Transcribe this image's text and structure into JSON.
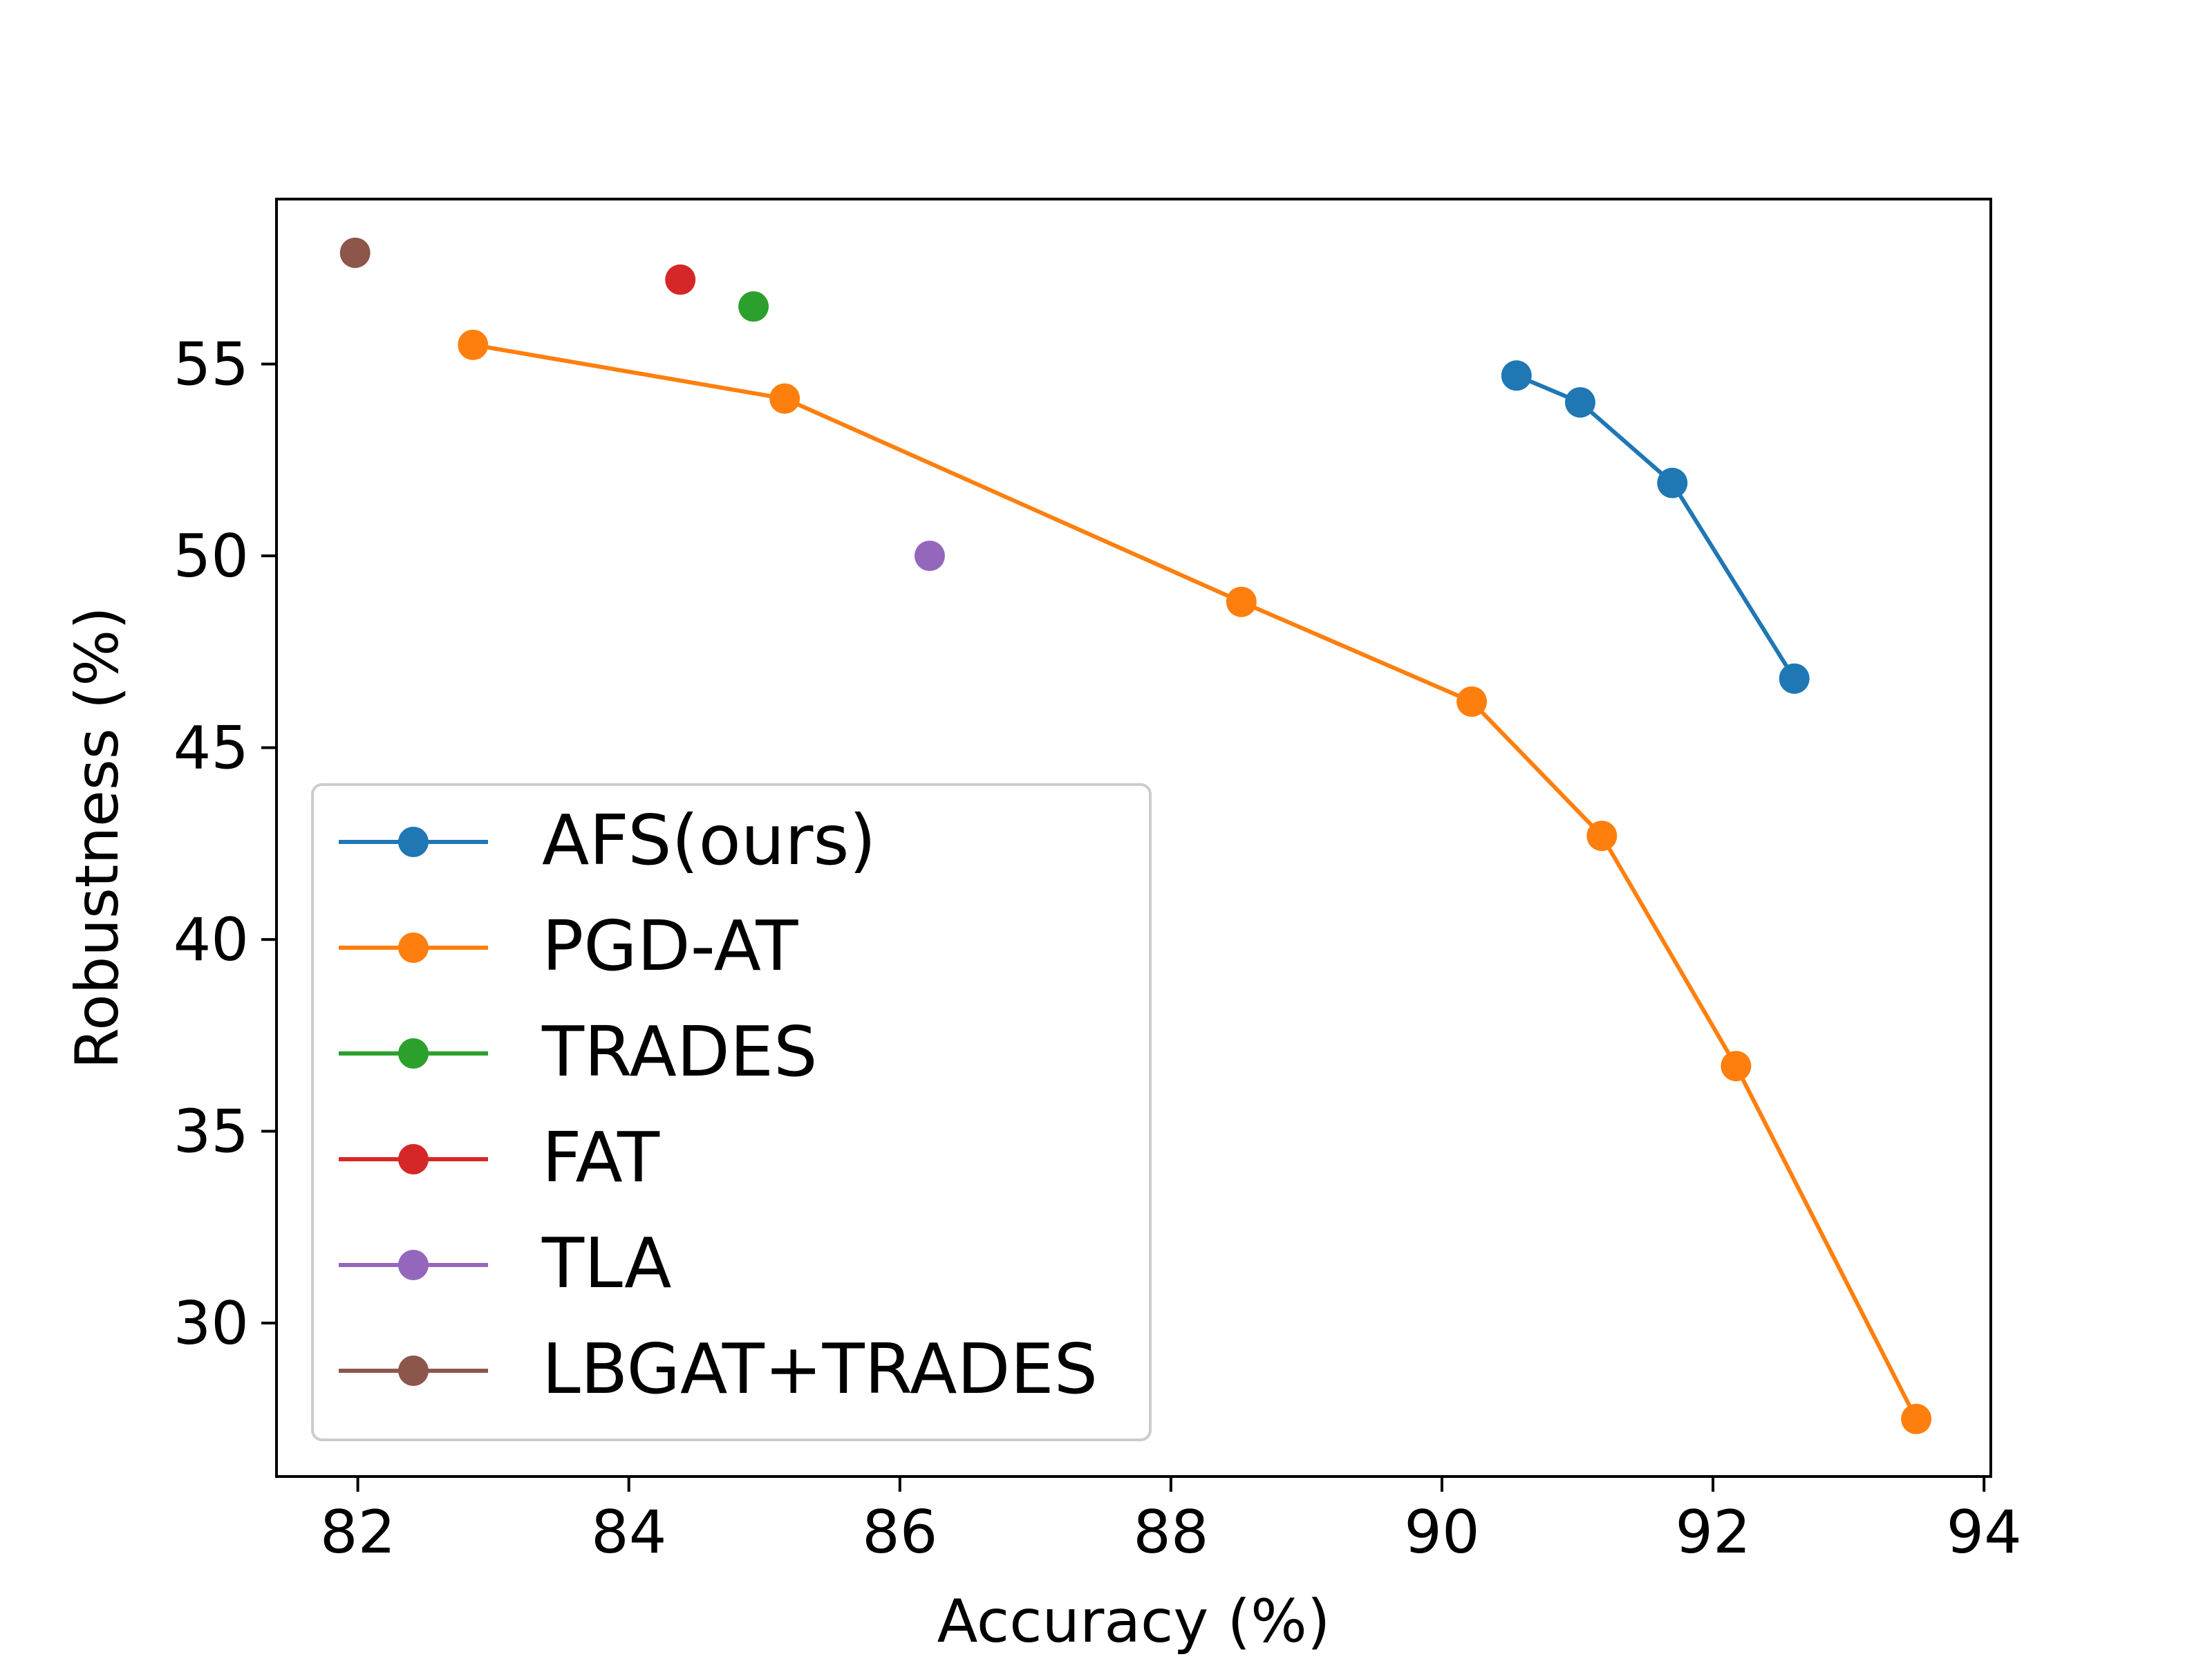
{
  "chart_data": {
    "type": "line",
    "title": "",
    "xlabel": "Accuracy (%)",
    "ylabel": "Robustness (%)",
    "xlim": [
      81.4,
      94.05
    ],
    "ylim": [
      26.0,
      59.3
    ],
    "xticks": [
      82,
      84,
      86,
      88,
      90,
      92,
      94
    ],
    "yticks": [
      30,
      35,
      40,
      45,
      50,
      55
    ],
    "grid": false,
    "legend_position": "lower-left",
    "series": [
      {
        "name": "AFS(ours)",
        "color": "#1f77b4",
        "line": true,
        "points": [
          [
            90.55,
            54.7
          ],
          [
            91.02,
            54.0
          ],
          [
            91.7,
            51.9
          ],
          [
            92.6,
            46.8
          ]
        ]
      },
      {
        "name": "PGD-AT",
        "color": "#ff7f0e",
        "line": true,
        "points": [
          [
            82.85,
            55.5
          ],
          [
            85.15,
            54.1
          ],
          [
            88.52,
            48.8
          ],
          [
            90.22,
            46.2
          ],
          [
            91.18,
            42.7
          ],
          [
            92.17,
            36.7
          ],
          [
            93.5,
            27.5
          ]
        ]
      },
      {
        "name": "TRADES",
        "color": "#2ca02c",
        "line": false,
        "points": [
          [
            84.92,
            56.5
          ]
        ]
      },
      {
        "name": "FAT",
        "color": "#d62728",
        "line": false,
        "points": [
          [
            84.38,
            57.2
          ]
        ]
      },
      {
        "name": "TLA",
        "color": "#9467bd",
        "line": false,
        "points": [
          [
            86.22,
            50.0
          ]
        ]
      },
      {
        "name": "LBGAT+TRADES",
        "color": "#8c564b",
        "line": false,
        "points": [
          [
            81.98,
            57.9
          ]
        ]
      }
    ]
  }
}
